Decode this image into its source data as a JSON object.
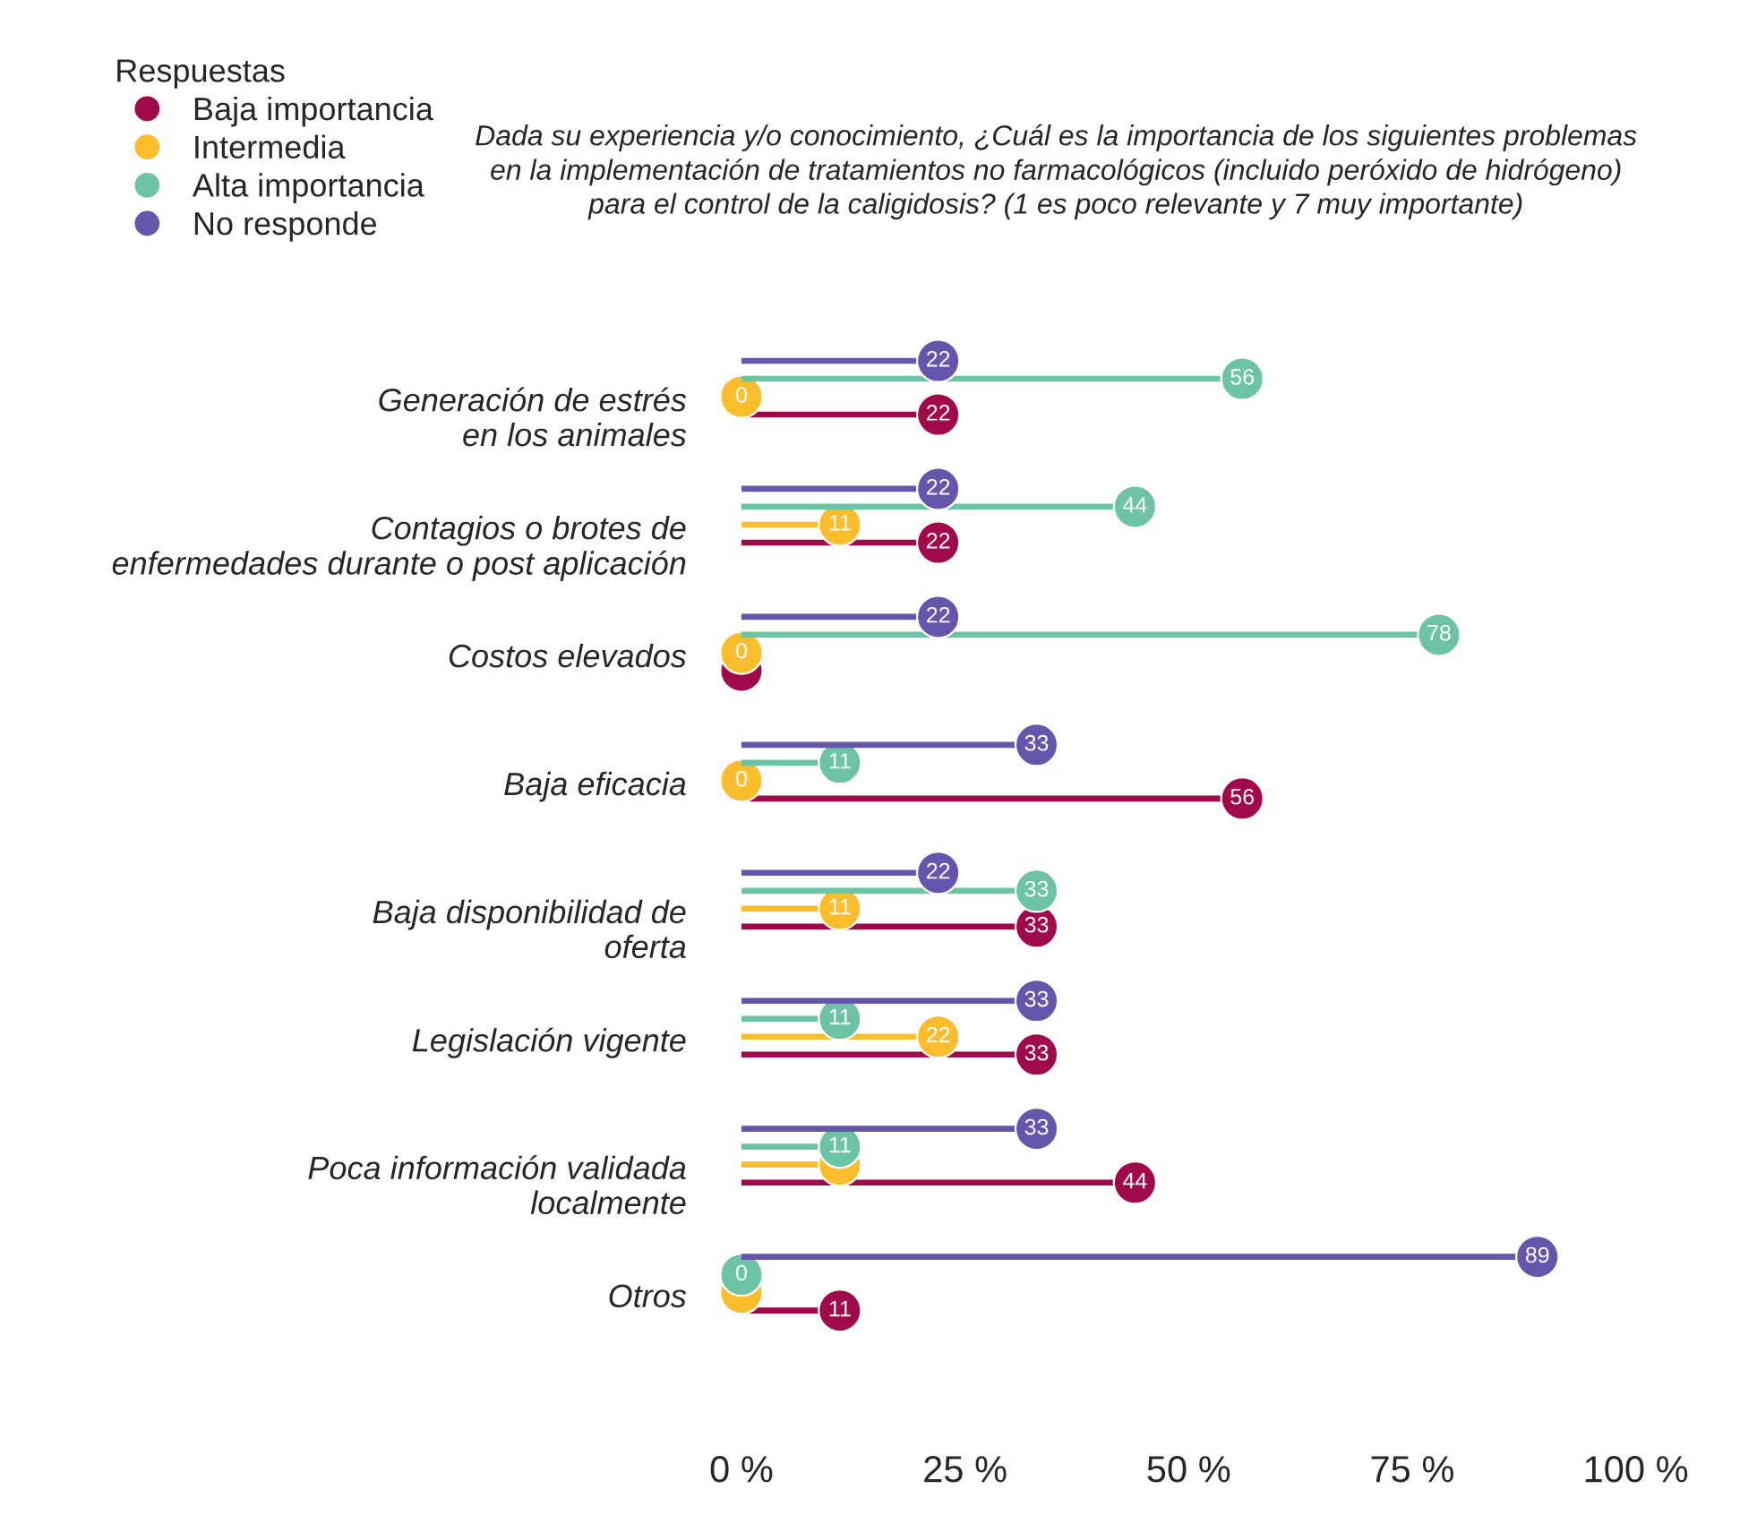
{
  "chart_data": {
    "type": "lollipop",
    "orientation": "horizontal",
    "title": "Dada su experiencia y/o conocimiento, ¿Cuál es la importancia de los siguientes problemas\nen la implementación de tratamientos no farmacológicos (incluido peróxido de hidrógeno)\npara el control de la caligidosis? (1 es poco relevante y 7 muy importante)",
    "legend_title": "Respuestas",
    "legend": "top left",
    "categories": [
      "Generación de estrés\nen los animales",
      "Contagios o brotes de\nenfermedades durante o post aplicación",
      "Costos elevados",
      "Baja eficacia",
      "Baja disponibilidad de\noferta",
      "Legislación vigente",
      "Poca información validada\nlocalmente",
      "Otros"
    ],
    "series": [
      {
        "name": "Baja importancia",
        "color": "#a0094a",
        "values": [
          22,
          22,
          0,
          56,
          33,
          33,
          44,
          11
        ],
        "value_labels": [
          "22",
          "22",
          null,
          "56",
          "33",
          "33",
          "44",
          "11"
        ]
      },
      {
        "name": "Intermedia",
        "color": "#fbbd2b",
        "values": [
          0,
          11,
          0,
          0,
          11,
          22,
          11,
          0
        ],
        "value_labels": [
          "0",
          "11",
          "0",
          "0",
          "11",
          "22",
          null,
          null
        ]
      },
      {
        "name": "Alta importancia",
        "color": "#6cc4a4",
        "values": [
          56,
          44,
          78,
          11,
          33,
          11,
          11,
          0
        ],
        "value_labels": [
          "56",
          "44",
          "78",
          "11",
          "33",
          "11",
          "11",
          "0"
        ]
      },
      {
        "name": "No responde",
        "color": "#6656ab",
        "values": [
          22,
          22,
          22,
          33,
          22,
          33,
          33,
          89
        ],
        "value_labels": [
          "22",
          "22",
          "22",
          "33",
          "22",
          "33",
          "33",
          "89"
        ]
      }
    ],
    "xlim": [
      0,
      100
    ],
    "xticks": [
      {
        "value": 0,
        "label": "0 %"
      },
      {
        "value": 25,
        "label": "25 %"
      },
      {
        "value": 50,
        "label": "50 %"
      },
      {
        "value": 75,
        "label": "75 %"
      },
      {
        "value": 100,
        "label": "100 %"
      }
    ],
    "marker": "circle",
    "line_style": "solid",
    "grid": false
  }
}
